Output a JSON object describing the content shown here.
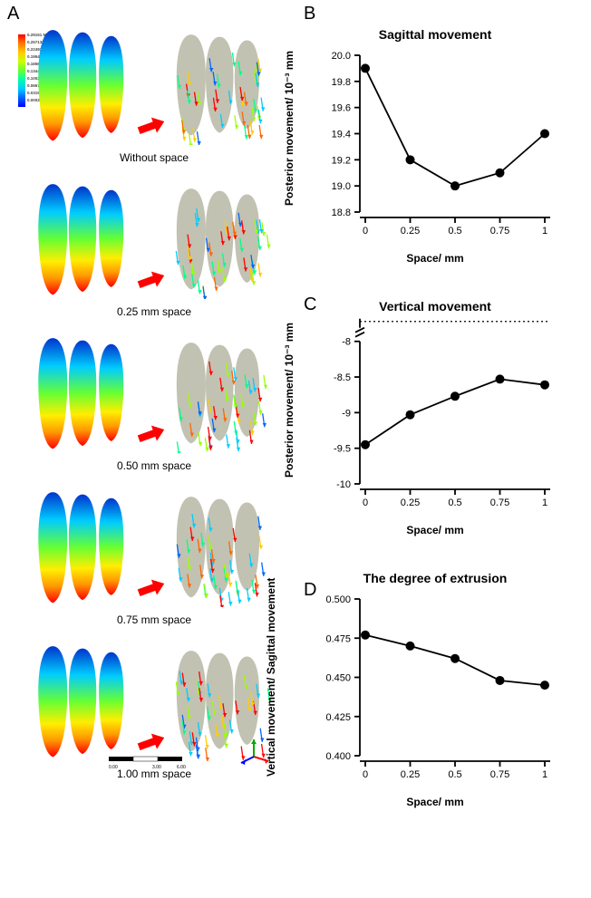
{
  "panel_labels": {
    "A": "A",
    "B": "B",
    "C": "C",
    "D": "D"
  },
  "simulations": [
    {
      "caption": "Without space"
    },
    {
      "caption": "0.25 mm space"
    },
    {
      "caption": "0.50 mm  space"
    },
    {
      "caption": "0.75 mm  space"
    },
    {
      "caption": "1.00 mm space"
    }
  ],
  "colorbar_labels": [
    "0.29151 Max",
    "0.257130",
    "0.224920",
    "0.195446",
    "0.165650",
    "0.134400",
    "0.100288",
    "0.066797",
    "0.031920",
    "0.00021574 Min"
  ],
  "chart_B": {
    "title": "Sagittal movement",
    "ylabel": "Posterior movement/ 10⁻³ mm",
    "xlabel": "Space/ mm",
    "x": [
      0,
      0.25,
      0.5,
      0.75,
      1.0
    ],
    "y": [
      19.9,
      19.2,
      19.0,
      19.1,
      19.4
    ],
    "ylim": [
      18.8,
      20.0
    ],
    "yticks": [
      18.8,
      19.0,
      19.2,
      19.4,
      19.6,
      19.8,
      20.0
    ],
    "xticks": [
      0,
      0.25,
      0.5,
      0.75,
      1.0
    ],
    "marker_size": 5,
    "line_color": "#000000",
    "marker_color": "#000000",
    "tick_fontsize": 11,
    "label_fontsize": 12,
    "title_fontsize": 14
  },
  "chart_C": {
    "title": "Vertical movement",
    "ylabel": "Posterior movement/ 10⁻³ mm",
    "xlabel": "Space/ mm",
    "x": [
      0,
      0.25,
      0.5,
      0.75,
      1.0
    ],
    "y": [
      -9.45,
      -9.03,
      -8.77,
      -8.53,
      -8.61
    ],
    "ylim": [
      -10,
      -7.8
    ],
    "yticks": [
      -10.0,
      -9.5,
      -9.0,
      -8.5,
      -8.0
    ],
    "xticks": [
      0,
      0.25,
      0.5,
      0.75,
      1.0
    ],
    "broken_axis": true,
    "dotted_top": true,
    "marker_size": 5,
    "line_color": "#000000",
    "marker_color": "#000000",
    "tick_fontsize": 11,
    "label_fontsize": 12,
    "title_fontsize": 14
  },
  "chart_D": {
    "title": "The degree of extrusion",
    "ylabel": "Vertical movement/ Sagittal movement",
    "xlabel": "Space/ mm",
    "x": [
      0,
      0.25,
      0.5,
      0.75,
      1.0
    ],
    "y": [
      0.477,
      0.47,
      0.462,
      0.448,
      0.445
    ],
    "ylim": [
      0.4,
      0.5
    ],
    "yticks": [
      0.4,
      0.425,
      0.45,
      0.475,
      0.5
    ],
    "xticks": [
      0,
      0.25,
      0.5,
      0.75,
      1.0
    ],
    "marker_size": 5,
    "line_color": "#000000",
    "marker_color": "#000000",
    "tick_fontsize": 11,
    "label_fontsize": 12,
    "title_fontsize": 14
  },
  "colors": {
    "arrow_red": "#ff0000",
    "background": "#ffffff"
  }
}
